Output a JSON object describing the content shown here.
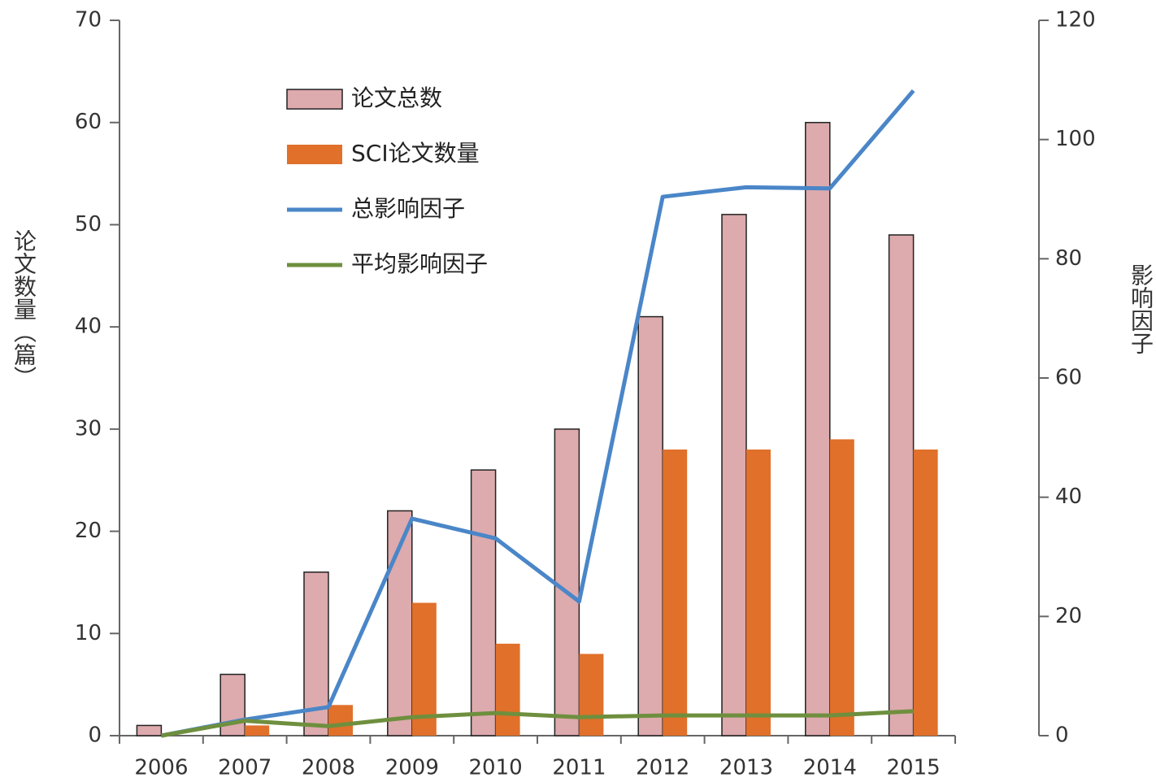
{
  "chart_data": {
    "type": "bar",
    "categories": [
      "2006",
      "2007",
      "2008",
      "2009",
      "2010",
      "2011",
      "2012",
      "2013",
      "2014",
      "2015"
    ],
    "y_label": "论文数量（篇）",
    "y2_label": "影响因子",
    "ylim": [
      0,
      70
    ],
    "yticks": [
      0,
      10,
      20,
      30,
      40,
      50,
      60,
      70
    ],
    "y2lim": [
      0,
      120
    ],
    "y2ticks": [
      0,
      20,
      40,
      60,
      80,
      100,
      120
    ],
    "legend": "upper left",
    "series": [
      {
        "name": "论文总数",
        "type": "bar",
        "color": "#ddaaad",
        "values": [
          1,
          6,
          16,
          22,
          26,
          30,
          41,
          51,
          60,
          49
        ]
      },
      {
        "name": "SCI论文数量",
        "type": "bar",
        "color": "#e0702a",
        "values": [
          0,
          1,
          3,
          13,
          9,
          8,
          28,
          28,
          29,
          28
        ]
      },
      {
        "name": "总影响因子",
        "type": "line",
        "axis": "y2",
        "color": "#4a86c8",
        "values": [
          0,
          2.7,
          4.8,
          36.4,
          33.1,
          22.5,
          90.4,
          92,
          91.8,
          108.2
        ]
      },
      {
        "name": "平均影响因子",
        "type": "line",
        "axis": "y2",
        "color": "#6e8f3e",
        "values": [
          0,
          2.5,
          1.6,
          3.1,
          3.8,
          3.1,
          3.4,
          3.4,
          3.4,
          4.1
        ]
      }
    ]
  }
}
